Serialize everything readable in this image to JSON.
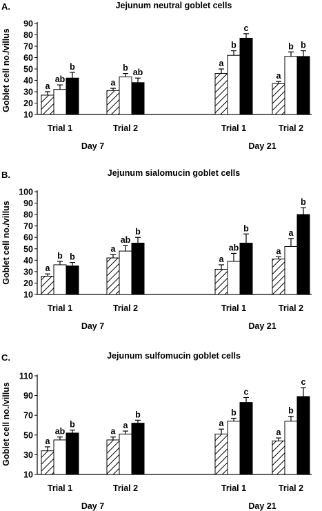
{
  "chart_data": [
    {
      "type": "bar",
      "panel_label": "A.",
      "title": "Jejunum neutral goblet cells",
      "ylabel": "Goblet cell no./villus",
      "ylim": [
        10,
        90
      ],
      "yticks": [
        10,
        20,
        30,
        40,
        50,
        60,
        70,
        80,
        90
      ],
      "categories": [
        "Trial 1",
        "Trial 2",
        "Trial 1",
        "Trial 2"
      ],
      "groups": [
        "Day 7",
        "Day 21"
      ],
      "group_of_category": [
        0,
        0,
        1,
        1
      ],
      "series_styles": [
        "hatched",
        "white",
        "black"
      ],
      "series": [
        {
          "values": [
            27,
            31,
            46,
            37
          ],
          "errors": [
            3,
            2,
            4,
            2
          ],
          "labels": [
            "a",
            "a",
            "a",
            "a"
          ]
        },
        {
          "values": [
            32,
            43,
            62,
            61
          ],
          "errors": [
            4,
            3,
            4,
            4
          ],
          "labels": [
            "ab",
            "b",
            "b",
            "b"
          ]
        },
        {
          "values": [
            42,
            38,
            77,
            61
          ],
          "errors": [
            5,
            4,
            4,
            5
          ],
          "labels": [
            "b",
            "ab",
            "c",
            "b"
          ]
        }
      ]
    },
    {
      "type": "bar",
      "panel_label": "B.",
      "title": "Jejunum sialomucin goblet cells",
      "ylabel": "Goblet cell no./villus",
      "ylim": [
        10,
        100
      ],
      "yticks": [
        10,
        20,
        30,
        40,
        50,
        60,
        70,
        80,
        90,
        100
      ],
      "categories": [
        "Trial 1",
        "Trial 2",
        "Trial 1",
        "Trial 2"
      ],
      "groups": [
        "Day 7",
        "Day 21"
      ],
      "group_of_category": [
        0,
        0,
        1,
        1
      ],
      "series_styles": [
        "hatched",
        "white",
        "black"
      ],
      "series": [
        {
          "values": [
            26,
            42,
            32,
            41
          ],
          "errors": [
            2,
            3,
            4,
            2
          ],
          "labels": [
            "a",
            "a",
            "a",
            "a"
          ]
        },
        {
          "values": [
            36,
            48,
            39,
            52
          ],
          "errors": [
            3,
            5,
            7,
            7
          ],
          "labels": [
            "b",
            "ab",
            "ab",
            "a"
          ]
        },
        {
          "values": [
            35,
            55,
            55,
            80
          ],
          "errors": [
            3,
            5,
            8,
            6
          ],
          "labels": [
            "b",
            "b",
            "b",
            "b"
          ]
        }
      ]
    },
    {
      "type": "bar",
      "panel_label": "C.",
      "title": "Jejunum sulfomucin goblet cells",
      "ylabel": "Goblet cell no./villus",
      "ylim": [
        10,
        110
      ],
      "yticks": [
        10,
        30,
        50,
        70,
        90,
        110
      ],
      "categories": [
        "Trial 1",
        "Trial 2",
        "Trial 1",
        "Trial 2"
      ],
      "groups": [
        "Day 7",
        "Day 21"
      ],
      "group_of_category": [
        0,
        0,
        1,
        1
      ],
      "series_styles": [
        "hatched",
        "white",
        "black"
      ],
      "series": [
        {
          "values": [
            34,
            45,
            51,
            44
          ],
          "errors": [
            4,
            3,
            5,
            3
          ],
          "labels": [
            "a",
            "a",
            "a",
            "a"
          ]
        },
        {
          "values": [
            45,
            51,
            64,
            64
          ],
          "errors": [
            3,
            3,
            3,
            5
          ],
          "labels": [
            "ab",
            "a",
            "b",
            "b"
          ]
        },
        {
          "values": [
            52,
            62,
            83,
            89
          ],
          "errors": [
            3,
            3,
            5,
            9
          ],
          "labels": [
            "b",
            "b",
            "c",
            "c"
          ]
        }
      ]
    }
  ]
}
